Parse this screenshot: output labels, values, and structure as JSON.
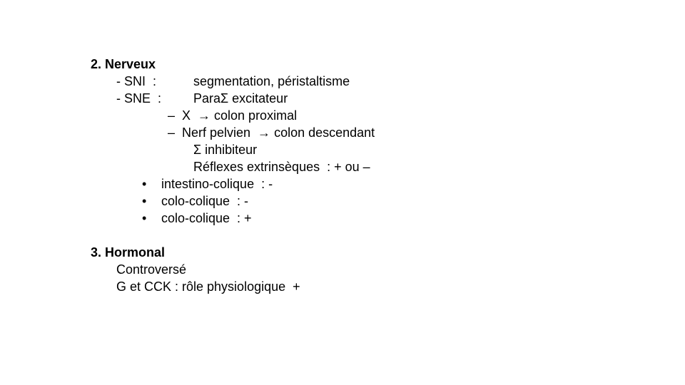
{
  "section2": {
    "heading": "2. Nerveux",
    "sni_label": "- SNI  :",
    "sni_value": "segmentation, péristaltisme",
    "sne_label": "- SNE  :",
    "sne_value": "ParaΣ excitateur",
    "sub_items": [
      "–  X  → colon proximal",
      "–  Nerf pelvien  → colon descendant"
    ],
    "sigma_inhib": "Σ inhibiteur",
    "reflexes": "Réflexes extrinsèques  : + ou –",
    "bullets": [
      "intestino-colique  : -",
      "colo-colique  : -",
      "colo-colique  : +"
    ]
  },
  "section3": {
    "heading": "3. Hormonal",
    "line1": "Controversé",
    "line2": "G et CCK : rôle physiologique  +"
  }
}
